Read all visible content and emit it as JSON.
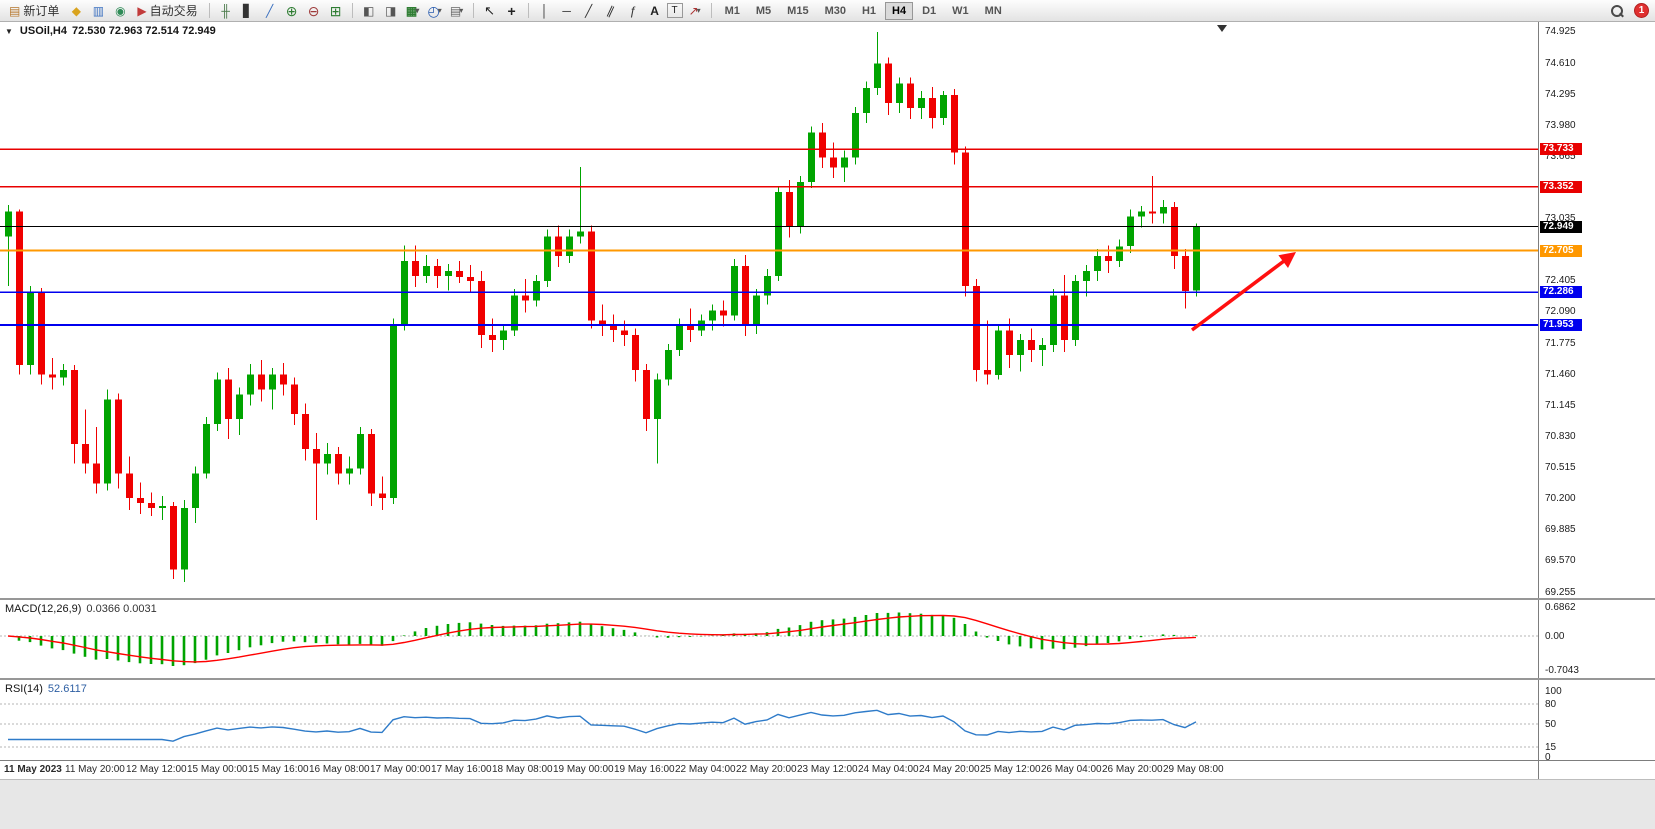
{
  "toolbar": {
    "new_order_label": "新订单",
    "auto_trading_label": "自动交易",
    "timeframes": [
      "M1",
      "M5",
      "M15",
      "M30",
      "H1",
      "H4",
      "D1",
      "W1",
      "MN"
    ],
    "active_timeframe": "H4",
    "notification_count": "1"
  },
  "chart": {
    "symbol_label": "USOil,H4",
    "ohlc_label": "72.530 72.963 72.514 72.949"
  },
  "chart_data": {
    "type": "candlestick",
    "symbol": "USOil",
    "timeframe": "H4",
    "ohlc": {
      "open": 72.53,
      "high": 72.963,
      "low": 72.514,
      "close": 72.949
    },
    "colors": {
      "bull": "#00a400",
      "bear": "#f00000",
      "histogram": "#00a400",
      "signal": "#ff0000",
      "rsi": "#2e7bc9",
      "arrow": "#ff1010"
    },
    "y_axis": {
      "min": 69.255,
      "max": 74.925,
      "step": 0.315
    },
    "y_ticks": [
      "74.925",
      "74.610",
      "74.295",
      "73.980",
      "73.665",
      "73.350",
      "73.035",
      "72.720",
      "72.405",
      "72.090",
      "71.775",
      "71.460",
      "71.145",
      "70.830",
      "70.515",
      "70.200",
      "69.885",
      "69.570",
      "69.255"
    ],
    "levels": [
      {
        "label": "73.733",
        "price": 73.733,
        "color": "#e80000",
        "width": 1.3,
        "role": "resistance-line"
      },
      {
        "label": "73.352",
        "price": 73.352,
        "color": "#e80000",
        "width": 1.3,
        "role": "resistance-line"
      },
      {
        "label": "72.949",
        "price": 72.949,
        "color": "#000000",
        "width": 1,
        "role": "current-price-line"
      },
      {
        "label": "72.705",
        "price": 72.705,
        "color": "#ff9800",
        "width": 2,
        "role": "pivot-line"
      },
      {
        "label": "72.286",
        "price": 72.286,
        "color": "#0000ee",
        "width": 1.6,
        "role": "support-line"
      },
      {
        "label": "71.953",
        "price": 71.953,
        "color": "#0000ee",
        "width": 1.6,
        "role": "support-line"
      }
    ],
    "time_labels": [
      "11 May 2023",
      "11 May 20:00",
      "12 May 12:00",
      "15 May 00:00",
      "15 May 16:00",
      "16 May 08:00",
      "17 May 00:00",
      "17 May 16:00",
      "18 May 08:00",
      "19 May 00:00",
      "19 May 16:00",
      "22 May 04:00",
      "22 May 20:00",
      "23 May 12:00",
      "24 May 04:00",
      "24 May 20:00",
      "25 May 12:00",
      "26 May 04:00",
      "26 May 20:00",
      "29 May 08:00"
    ],
    "candles": [
      [
        72.85,
        73.17,
        72.35,
        73.1
      ],
      [
        73.1,
        73.12,
        71.45,
        71.55
      ],
      [
        71.55,
        72.35,
        71.45,
        72.28
      ],
      [
        72.28,
        72.33,
        71.35,
        71.45
      ],
      [
        71.45,
        71.62,
        71.3,
        71.42
      ],
      [
        71.42,
        71.56,
        71.34,
        71.5
      ],
      [
        71.5,
        71.55,
        70.55,
        70.75
      ],
      [
        70.75,
        71.1,
        70.45,
        70.55
      ],
      [
        70.55,
        70.92,
        70.25,
        70.35
      ],
      [
        70.35,
        71.3,
        70.28,
        71.2
      ],
      [
        71.2,
        71.26,
        70.3,
        70.45
      ],
      [
        70.45,
        70.62,
        70.08,
        70.2
      ],
      [
        70.2,
        70.36,
        70.04,
        70.15
      ],
      [
        70.15,
        70.26,
        70.02,
        70.1
      ],
      [
        70.1,
        70.22,
        69.98,
        70.12
      ],
      [
        70.12,
        70.16,
        69.38,
        69.48
      ],
      [
        69.48,
        70.18,
        69.35,
        70.1
      ],
      [
        70.1,
        70.52,
        69.95,
        70.45
      ],
      [
        70.45,
        71.02,
        70.4,
        70.95
      ],
      [
        70.95,
        71.47,
        70.88,
        71.4
      ],
      [
        71.4,
        71.52,
        70.8,
        71.0
      ],
      [
        71.0,
        71.32,
        70.84,
        71.25
      ],
      [
        71.25,
        71.56,
        71.14,
        71.45
      ],
      [
        71.45,
        71.6,
        71.18,
        71.3
      ],
      [
        71.3,
        71.52,
        71.1,
        71.45
      ],
      [
        71.45,
        71.57,
        71.24,
        71.35
      ],
      [
        71.35,
        71.42,
        70.94,
        71.05
      ],
      [
        71.05,
        71.16,
        70.58,
        70.7
      ],
      [
        70.7,
        70.86,
        69.98,
        70.55
      ],
      [
        70.55,
        70.76,
        70.44,
        70.65
      ],
      [
        70.65,
        70.72,
        70.34,
        70.45
      ],
      [
        70.45,
        70.62,
        70.34,
        70.5
      ],
      [
        70.5,
        70.92,
        70.44,
        70.85
      ],
      [
        70.85,
        70.9,
        70.12,
        70.25
      ],
      [
        70.25,
        70.42,
        70.08,
        70.2
      ],
      [
        70.2,
        72.02,
        70.14,
        71.95
      ],
      [
        71.95,
        72.76,
        71.9,
        72.6
      ],
      [
        72.6,
        72.76,
        72.34,
        72.45
      ],
      [
        72.45,
        72.66,
        72.38,
        72.55
      ],
      [
        72.55,
        72.62,
        72.33,
        72.45
      ],
      [
        72.45,
        72.57,
        72.3,
        72.5
      ],
      [
        72.5,
        72.6,
        72.38,
        72.44
      ],
      [
        72.44,
        72.56,
        72.28,
        72.4
      ],
      [
        72.4,
        72.5,
        71.72,
        71.85
      ],
      [
        71.85,
        72.02,
        71.68,
        71.8
      ],
      [
        71.8,
        71.96,
        71.7,
        71.9
      ],
      [
        71.9,
        72.32,
        71.84,
        72.25
      ],
      [
        72.25,
        72.42,
        72.08,
        72.2
      ],
      [
        72.2,
        72.46,
        72.14,
        72.4
      ],
      [
        72.4,
        72.92,
        72.34,
        72.85
      ],
      [
        72.85,
        72.96,
        72.54,
        72.65
      ],
      [
        72.65,
        72.92,
        72.58,
        72.85
      ],
      [
        72.85,
        73.55,
        72.78,
        72.9
      ],
      [
        72.9,
        72.96,
        71.92,
        72.0
      ],
      [
        72.0,
        72.16,
        71.84,
        71.95
      ],
      [
        71.95,
        72.06,
        71.78,
        71.9
      ],
      [
        71.9,
        72.0,
        71.74,
        71.85
      ],
      [
        71.85,
        71.92,
        71.38,
        71.5
      ],
      [
        71.5,
        71.56,
        70.88,
        71.0
      ],
      [
        71.0,
        71.46,
        70.55,
        71.4
      ],
      [
        71.4,
        71.76,
        71.34,
        71.7
      ],
      [
        71.7,
        72.02,
        71.64,
        71.95
      ],
      [
        71.95,
        72.12,
        71.78,
        71.9
      ],
      [
        71.9,
        72.06,
        71.84,
        72.0
      ],
      [
        72.0,
        72.16,
        71.9,
        72.1
      ],
      [
        72.1,
        72.2,
        71.94,
        72.05
      ],
      [
        72.05,
        72.62,
        72.0,
        72.55
      ],
      [
        72.55,
        72.66,
        71.84,
        71.95
      ],
      [
        71.95,
        72.32,
        71.86,
        72.25
      ],
      [
        72.25,
        72.52,
        72.16,
        72.45
      ],
      [
        72.45,
        73.36,
        72.4,
        73.3
      ],
      [
        73.3,
        73.42,
        72.84,
        72.95
      ],
      [
        72.95,
        73.46,
        72.88,
        73.4
      ],
      [
        73.4,
        73.96,
        73.34,
        73.9
      ],
      [
        73.9,
        74.0,
        73.54,
        73.65
      ],
      [
        73.65,
        73.8,
        73.44,
        73.55
      ],
      [
        73.55,
        73.72,
        73.4,
        73.65
      ],
      [
        73.65,
        74.16,
        73.58,
        74.1
      ],
      [
        74.1,
        74.42,
        74.0,
        74.35
      ],
      [
        74.35,
        74.92,
        74.28,
        74.6
      ],
      [
        74.6,
        74.66,
        74.08,
        74.2
      ],
      [
        74.2,
        74.46,
        74.1,
        74.4
      ],
      [
        74.4,
        74.46,
        74.04,
        74.15
      ],
      [
        74.15,
        74.32,
        74.04,
        74.25
      ],
      [
        74.25,
        74.36,
        73.94,
        74.05
      ],
      [
        74.05,
        74.32,
        73.98,
        74.28
      ],
      [
        74.28,
        74.34,
        73.58,
        73.7
      ],
      [
        73.7,
        73.76,
        72.24,
        72.35
      ],
      [
        72.35,
        72.42,
        71.38,
        71.5
      ],
      [
        71.5,
        72.0,
        71.35,
        71.45
      ],
      [
        71.45,
        71.96,
        71.4,
        71.9
      ],
      [
        71.9,
        72.02,
        71.52,
        71.65
      ],
      [
        71.65,
        71.86,
        71.48,
        71.8
      ],
      [
        71.8,
        71.92,
        71.58,
        71.7
      ],
      [
        71.7,
        71.82,
        71.54,
        71.75
      ],
      [
        71.75,
        72.32,
        71.68,
        72.25
      ],
      [
        72.25,
        72.46,
        71.68,
        71.8
      ],
      [
        71.8,
        72.46,
        71.74,
        72.4
      ],
      [
        72.4,
        72.56,
        72.24,
        72.5
      ],
      [
        72.5,
        72.72,
        72.4,
        72.65
      ],
      [
        72.65,
        72.76,
        72.48,
        72.6
      ],
      [
        72.6,
        72.82,
        72.54,
        72.75
      ],
      [
        72.75,
        73.12,
        72.68,
        73.05
      ],
      [
        73.05,
        73.16,
        72.94,
        73.1
      ],
      [
        73.1,
        73.46,
        72.98,
        73.08
      ],
      [
        73.08,
        73.22,
        72.98,
        73.15
      ],
      [
        73.15,
        73.2,
        72.52,
        72.65
      ],
      [
        72.65,
        72.72,
        72.12,
        72.3
      ],
      [
        72.3,
        72.98,
        72.24,
        72.95
      ]
    ],
    "indicators": {
      "macd": {
        "label": "MACD(12,26,9)",
        "values_label": "0.0366 0.0031",
        "params": [
          12,
          26,
          9
        ],
        "axis": [
          "0.6862",
          "0.00",
          "-0.7043"
        ]
      },
      "rsi": {
        "label": "RSI(14)",
        "value_label": "52.6117",
        "period": 14,
        "axis": [
          "100",
          "80",
          "50",
          "15",
          "0"
        ]
      }
    },
    "annotation": {
      "type": "arrow",
      "color": "#ff1010",
      "direction": "up-right"
    }
  }
}
